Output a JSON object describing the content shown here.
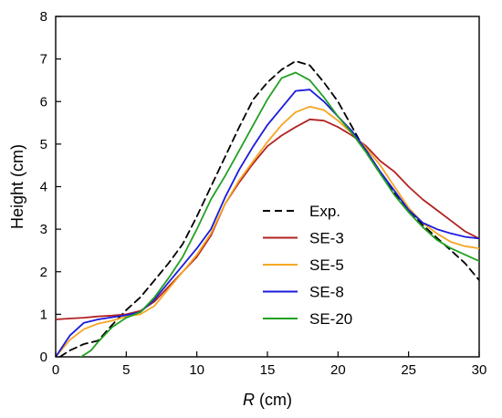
{
  "chart_data": {
    "type": "line",
    "title": "",
    "xlabel_italic": "R",
    "xlabel_unit": " (cm)",
    "ylabel": "Height (cm)",
    "xlim": [
      0,
      30
    ],
    "ylim": [
      0,
      8
    ],
    "xticks": [
      0,
      5,
      10,
      15,
      20,
      25,
      30
    ],
    "yticks": [
      0,
      1,
      2,
      3,
      4,
      5,
      6,
      7,
      8
    ],
    "grid": false,
    "legend_position": "center-right",
    "series": [
      {
        "name": "Exp.",
        "color": "#000000",
        "dash": "dashed",
        "points": [
          [
            0.3,
            0.0
          ],
          [
            1,
            0.15
          ],
          [
            2,
            0.3
          ],
          [
            3,
            0.38
          ],
          [
            4,
            0.75
          ],
          [
            5,
            1.1
          ],
          [
            6,
            1.4
          ],
          [
            7,
            1.8
          ],
          [
            8,
            2.2
          ],
          [
            9,
            2.65
          ],
          [
            10,
            3.3
          ],
          [
            11,
            4.0
          ],
          [
            12,
            4.7
          ],
          [
            13,
            5.4
          ],
          [
            14,
            6.05
          ],
          [
            15,
            6.45
          ],
          [
            16,
            6.75
          ],
          [
            17,
            6.95
          ],
          [
            18,
            6.85
          ],
          [
            19,
            6.45
          ],
          [
            20,
            6.0
          ],
          [
            21,
            5.4
          ],
          [
            22,
            4.8
          ],
          [
            23,
            4.3
          ],
          [
            24,
            3.85
          ],
          [
            25,
            3.45
          ],
          [
            26,
            3.1
          ],
          [
            27,
            2.8
          ],
          [
            28,
            2.5
          ],
          [
            29,
            2.2
          ],
          [
            30,
            1.8
          ]
        ]
      },
      {
        "name": "SE-3",
        "color": "#b22222",
        "dash": "solid",
        "points": [
          [
            0,
            0.88
          ],
          [
            1,
            0.9
          ],
          [
            2,
            0.92
          ],
          [
            3,
            0.95
          ],
          [
            4,
            0.97
          ],
          [
            5,
            1.0
          ],
          [
            6,
            1.08
          ],
          [
            7,
            1.3
          ],
          [
            8,
            1.65
          ],
          [
            9,
            2.0
          ],
          [
            10,
            2.35
          ],
          [
            11,
            2.85
          ],
          [
            12,
            3.6
          ],
          [
            13,
            4.1
          ],
          [
            14,
            4.55
          ],
          [
            15,
            4.95
          ],
          [
            16,
            5.2
          ],
          [
            17,
            5.4
          ],
          [
            18,
            5.58
          ],
          [
            19,
            5.55
          ],
          [
            20,
            5.4
          ],
          [
            21,
            5.2
          ],
          [
            22,
            4.95
          ],
          [
            23,
            4.6
          ],
          [
            24,
            4.35
          ],
          [
            25,
            4.0
          ],
          [
            26,
            3.7
          ],
          [
            27,
            3.45
          ],
          [
            28,
            3.2
          ],
          [
            29,
            2.95
          ],
          [
            30,
            2.78
          ]
        ]
      },
      {
        "name": "SE-5",
        "color": "#f5a623",
        "dash": "solid",
        "points": [
          [
            0,
            0.0
          ],
          [
            1,
            0.4
          ],
          [
            2,
            0.65
          ],
          [
            3,
            0.78
          ],
          [
            4,
            0.85
          ],
          [
            5,
            0.95
          ],
          [
            6,
            1.0
          ],
          [
            7,
            1.2
          ],
          [
            8,
            1.6
          ],
          [
            9,
            2.0
          ],
          [
            10,
            2.4
          ],
          [
            11,
            2.9
          ],
          [
            12,
            3.6
          ],
          [
            13,
            4.15
          ],
          [
            14,
            4.6
          ],
          [
            15,
            5.05
          ],
          [
            16,
            5.45
          ],
          [
            17,
            5.75
          ],
          [
            18,
            5.88
          ],
          [
            19,
            5.8
          ],
          [
            20,
            5.55
          ],
          [
            21,
            5.25
          ],
          [
            22,
            4.9
          ],
          [
            23,
            4.5
          ],
          [
            24,
            4.0
          ],
          [
            25,
            3.5
          ],
          [
            26,
            3.15
          ],
          [
            27,
            2.9
          ],
          [
            28,
            2.7
          ],
          [
            29,
            2.6
          ],
          [
            30,
            2.55
          ]
        ]
      },
      {
        "name": "SE-8",
        "color": "#1a1adc",
        "dash": "solid",
        "points": [
          [
            0,
            0.0
          ],
          [
            1,
            0.5
          ],
          [
            2,
            0.8
          ],
          [
            3,
            0.88
          ],
          [
            4,
            0.93
          ],
          [
            5,
            0.98
          ],
          [
            6,
            1.05
          ],
          [
            7,
            1.35
          ],
          [
            8,
            1.75
          ],
          [
            9,
            2.15
          ],
          [
            10,
            2.55
          ],
          [
            11,
            3.0
          ],
          [
            12,
            3.75
          ],
          [
            13,
            4.4
          ],
          [
            14,
            4.95
          ],
          [
            15,
            5.45
          ],
          [
            16,
            5.85
          ],
          [
            17,
            6.25
          ],
          [
            18,
            6.28
          ],
          [
            19,
            6.0
          ],
          [
            20,
            5.65
          ],
          [
            21,
            5.3
          ],
          [
            22,
            4.85
          ],
          [
            23,
            4.35
          ],
          [
            24,
            3.9
          ],
          [
            25,
            3.45
          ],
          [
            26,
            3.15
          ],
          [
            27,
            3.0
          ],
          [
            28,
            2.9
          ],
          [
            29,
            2.82
          ],
          [
            30,
            2.78
          ]
        ]
      },
      {
        "name": "SE-20",
        "color": "#22a022",
        "dash": "solid",
        "points": [
          [
            1.8,
            0.0
          ],
          [
            2.5,
            0.15
          ],
          [
            3,
            0.35
          ],
          [
            4,
            0.7
          ],
          [
            5,
            0.92
          ],
          [
            6,
            1.05
          ],
          [
            7,
            1.4
          ],
          [
            8,
            1.85
          ],
          [
            9,
            2.35
          ],
          [
            10,
            3.0
          ],
          [
            11,
            3.7
          ],
          [
            12,
            4.25
          ],
          [
            13,
            4.85
          ],
          [
            14,
            5.45
          ],
          [
            15,
            6.05
          ],
          [
            16,
            6.55
          ],
          [
            17,
            6.68
          ],
          [
            18,
            6.5
          ],
          [
            19,
            6.1
          ],
          [
            20,
            5.65
          ],
          [
            21,
            5.25
          ],
          [
            22,
            4.8
          ],
          [
            23,
            4.3
          ],
          [
            24,
            3.8
          ],
          [
            25,
            3.4
          ],
          [
            26,
            3.05
          ],
          [
            27,
            2.75
          ],
          [
            28,
            2.55
          ],
          [
            29,
            2.4
          ],
          [
            30,
            2.25
          ]
        ]
      }
    ]
  }
}
